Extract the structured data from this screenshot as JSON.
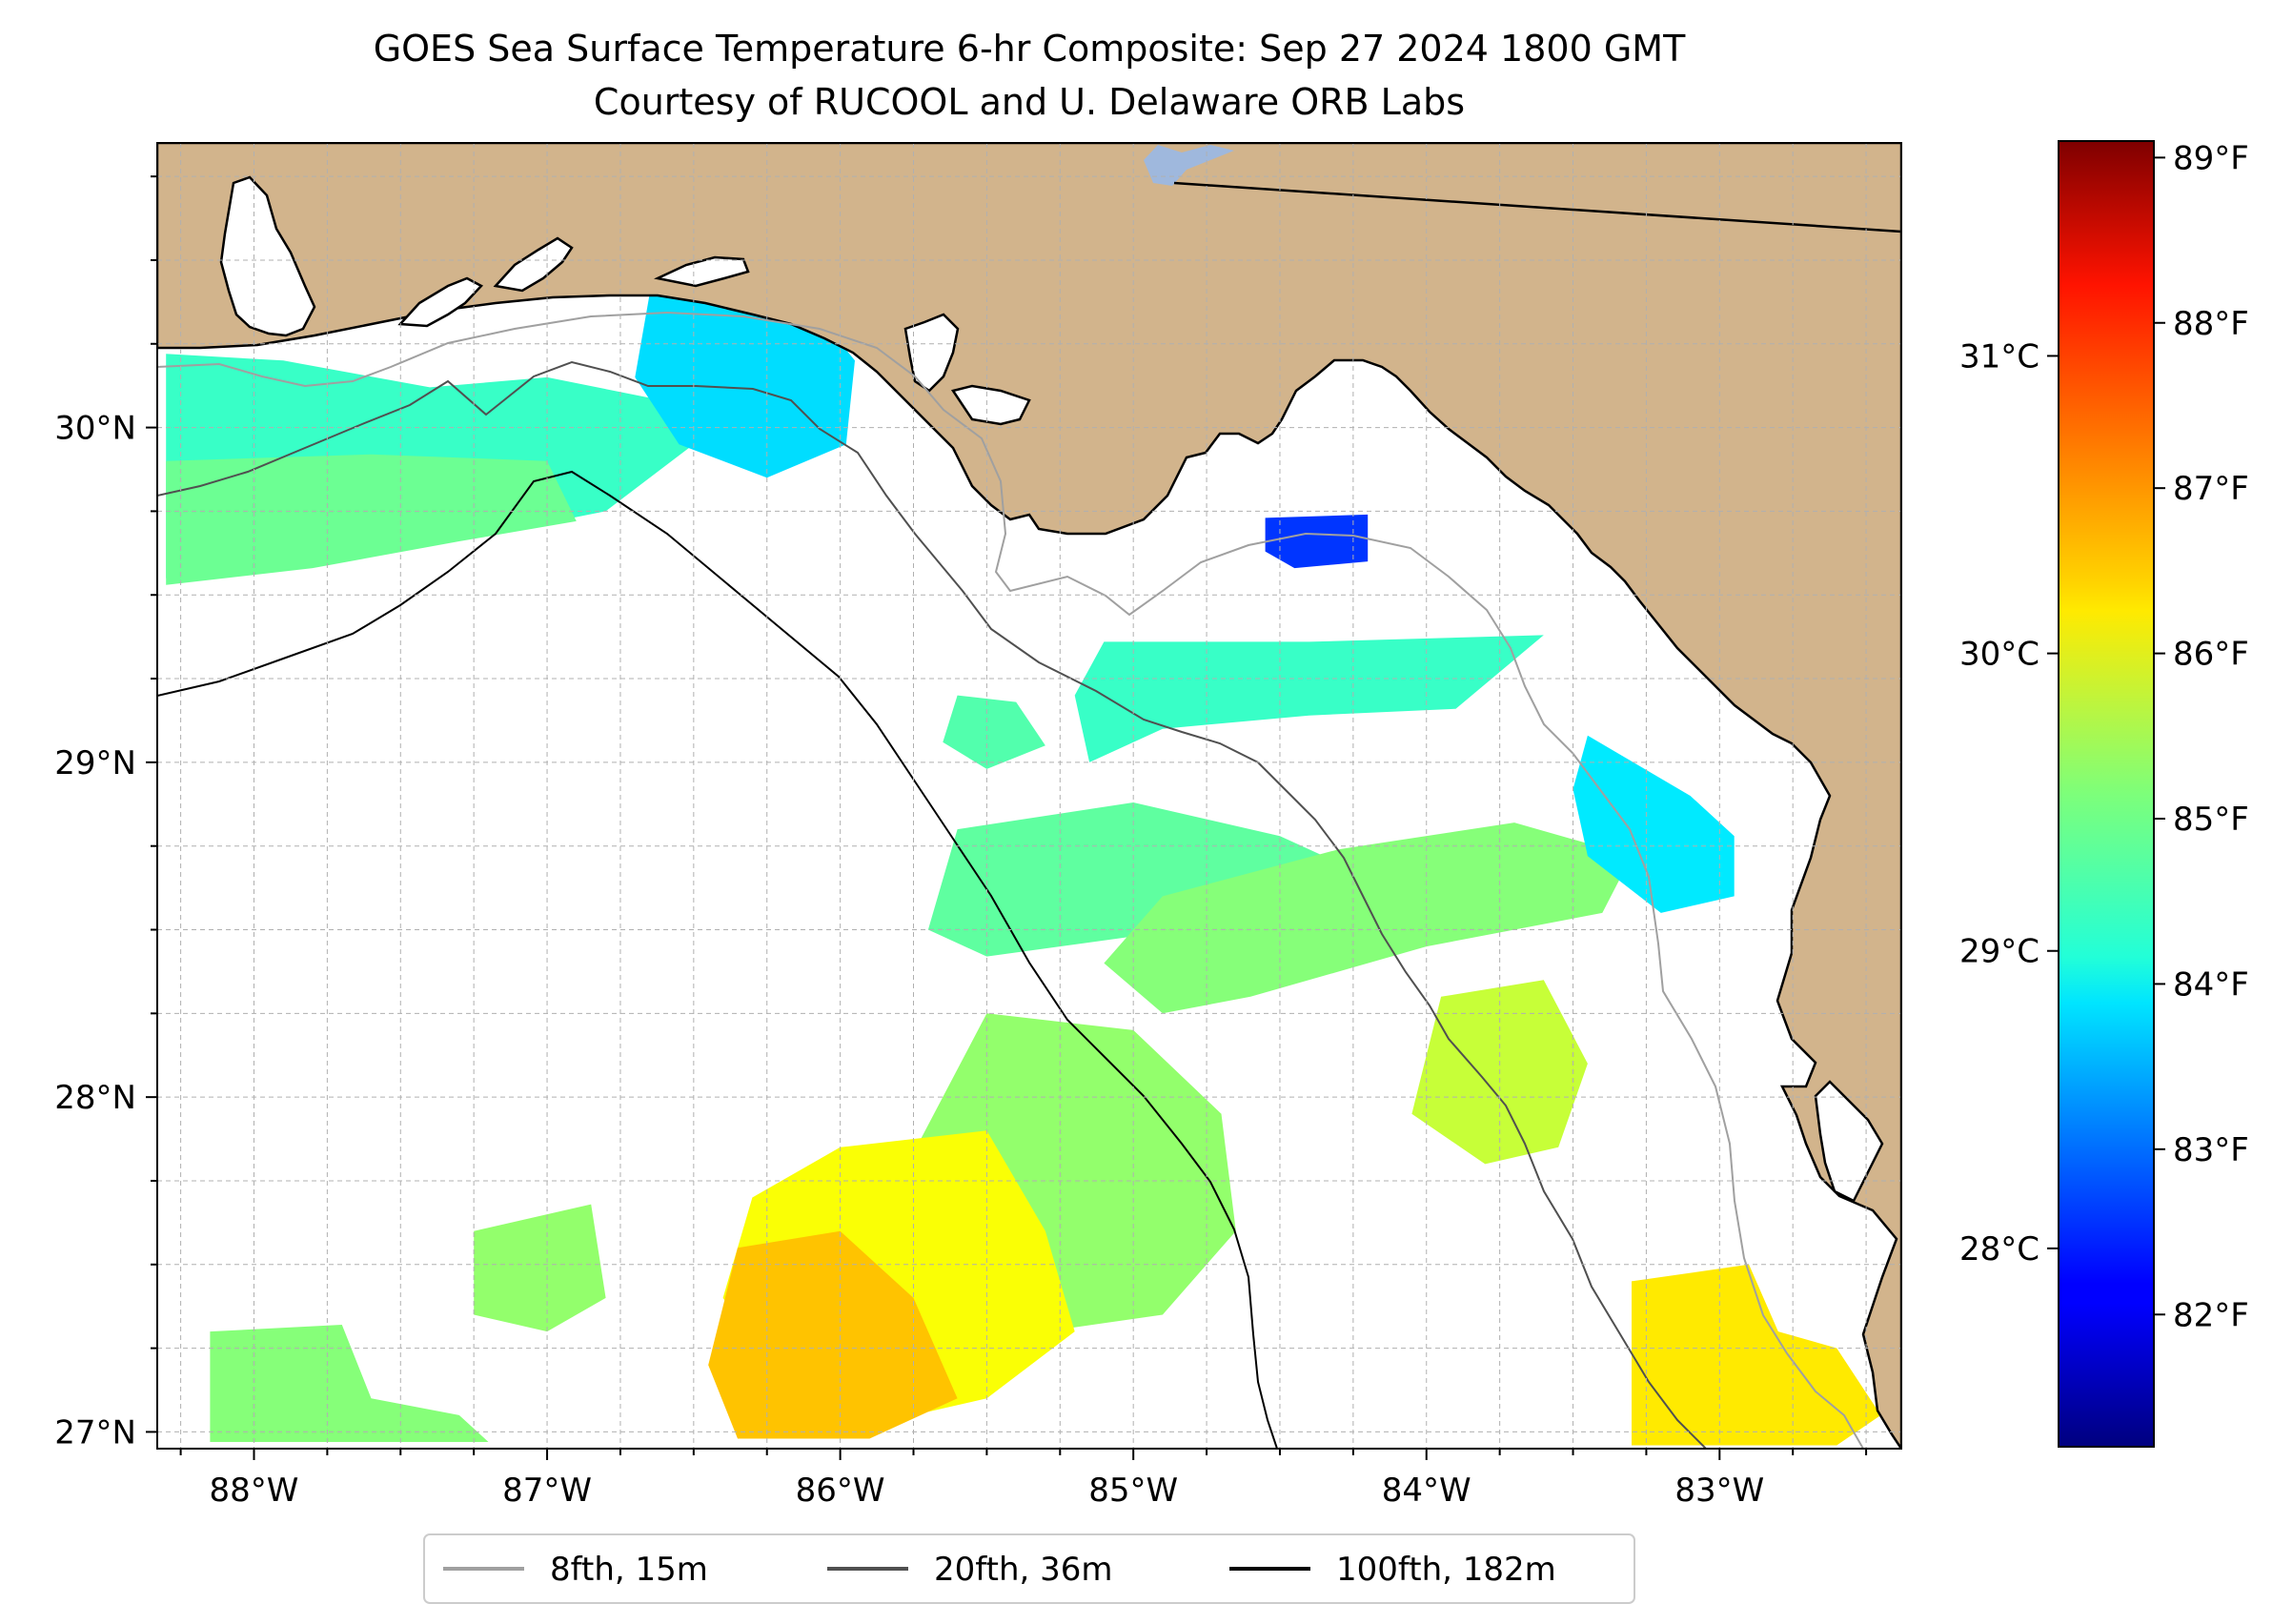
{
  "title": "GOES Sea Surface Temperature 6-hr Composite: Sep 27 2024 1800 GMT",
  "subtitle": "Courtesy of RUCOOL and U. Delaware ORB Labs",
  "map": {
    "lon_range": [
      -88.33,
      -82.38
    ],
    "lat_range": [
      26.95,
      30.85
    ],
    "lon_ticks": [
      {
        "value": -88,
        "label": "88°W"
      },
      {
        "value": -87,
        "label": "87°W"
      },
      {
        "value": -86,
        "label": "86°W"
      },
      {
        "value": -85,
        "label": "85°W"
      },
      {
        "value": -84,
        "label": "84°W"
      },
      {
        "value": -83,
        "label": "83°W"
      }
    ],
    "lat_ticks": [
      {
        "value": 27,
        "label": "27°N"
      },
      {
        "value": 28,
        "label": "28°N"
      },
      {
        "value": 29,
        "label": "29°N"
      },
      {
        "value": 30,
        "label": "30°N"
      }
    ],
    "gridlines": true,
    "colors": {
      "land": "#d2b48c",
      "ocean": "#ffffff",
      "coastline": "#000000",
      "grid": "#b0b0b0",
      "lake": "#9fb8dd"
    }
  },
  "colorbar": {
    "colormap": "jet",
    "f_range": [
      81.2,
      89.1
    ],
    "f_ticks": [
      {
        "value": 82,
        "label": "82°F"
      },
      {
        "value": 83,
        "label": "83°F"
      },
      {
        "value": 84,
        "label": "84°F"
      },
      {
        "value": 85,
        "label": "85°F"
      },
      {
        "value": 86,
        "label": "86°F"
      },
      {
        "value": 87,
        "label": "87°F"
      },
      {
        "value": 88,
        "label": "88°F"
      },
      {
        "value": 89,
        "label": "89°F"
      }
    ],
    "c_ticks": [
      {
        "value": 28,
        "label": "28°C"
      },
      {
        "value": 29,
        "label": "29°C"
      },
      {
        "value": 30,
        "label": "30°C"
      },
      {
        "value": 31,
        "label": "31°C"
      }
    ]
  },
  "legend": {
    "placement": "bottom-center",
    "entries": [
      {
        "label": "8fth, 15m",
        "color": "#a0a0a0"
      },
      {
        "label": "20fth, 36m",
        "color": "#505050"
      },
      {
        "label": "100fth, 182m",
        "color": "#000000"
      }
    ]
  },
  "sst_patches": [
    {
      "name": "panhandle-shelf",
      "temp_f": 84.6,
      "poly": [
        [
          -88.3,
          30.22
        ],
        [
          -87.9,
          30.2
        ],
        [
          -87.4,
          30.12
        ],
        [
          -87.0,
          30.15
        ],
        [
          -86.6,
          30.08
        ],
        [
          -86.5,
          29.95
        ],
        [
          -86.8,
          29.75
        ],
        [
          -87.2,
          29.68
        ],
        [
          -87.7,
          29.62
        ],
        [
          -88.3,
          29.55
        ]
      ]
    },
    {
      "name": "panhandle-shelf-west-warm",
      "temp_f": 85.0,
      "poly": [
        [
          -88.3,
          29.9
        ],
        [
          -87.6,
          29.92
        ],
        [
          -87.0,
          29.9
        ],
        [
          -86.9,
          29.72
        ],
        [
          -87.3,
          29.66
        ],
        [
          -87.8,
          29.58
        ],
        [
          -88.3,
          29.53
        ]
      ]
    },
    {
      "name": "destin-cool-patch",
      "temp_f": 83.9,
      "poly": [
        [
          -86.65,
          30.4
        ],
        [
          -86.1,
          30.36
        ],
        [
          -85.95,
          30.2
        ],
        [
          -85.98,
          29.95
        ],
        [
          -86.25,
          29.85
        ],
        [
          -86.55,
          29.95
        ],
        [
          -86.7,
          30.15
        ]
      ]
    },
    {
      "name": "apalachee-cool-patch",
      "temp_f": 82.6,
      "poly": [
        [
          -84.55,
          29.73
        ],
        [
          -84.2,
          29.74
        ],
        [
          -84.2,
          29.6
        ],
        [
          -84.45,
          29.58
        ],
        [
          -84.55,
          29.63
        ]
      ]
    },
    {
      "name": "mid-shelf-band",
      "temp_f": 84.6,
      "poly": [
        [
          -85.1,
          29.36
        ],
        [
          -84.4,
          29.36
        ],
        [
          -83.6,
          29.38
        ],
        [
          -83.9,
          29.16
        ],
        [
          -84.4,
          29.14
        ],
        [
          -84.9,
          29.1
        ],
        [
          -85.15,
          29.0
        ],
        [
          -85.2,
          29.2
        ]
      ]
    },
    {
      "name": "big-bend-west-patch",
      "temp_f": 84.8,
      "poly": [
        [
          -85.6,
          29.2
        ],
        [
          -85.4,
          29.18
        ],
        [
          -85.3,
          29.05
        ],
        [
          -85.5,
          28.98
        ],
        [
          -85.65,
          29.06
        ]
      ]
    },
    {
      "name": "central-band",
      "temp_f": 84.9,
      "poly": [
        [
          -85.6,
          28.8
        ],
        [
          -85.0,
          28.88
        ],
        [
          -84.5,
          28.78
        ],
        [
          -84.3,
          28.7
        ],
        [
          -84.5,
          28.52
        ],
        [
          -85.0,
          28.48
        ],
        [
          -85.5,
          28.42
        ],
        [
          -85.7,
          28.5
        ]
      ]
    },
    {
      "name": "central-band-east",
      "temp_f": 85.2,
      "poly": [
        [
          -84.9,
          28.6
        ],
        [
          -84.3,
          28.74
        ],
        [
          -83.7,
          28.82
        ],
        [
          -83.3,
          28.72
        ],
        [
          -83.4,
          28.55
        ],
        [
          -84.0,
          28.45
        ],
        [
          -84.6,
          28.3
        ],
        [
          -84.9,
          28.25
        ],
        [
          -85.1,
          28.4
        ]
      ]
    },
    {
      "name": "tampa-shelf-cool",
      "temp_f": 84.0,
      "poly": [
        [
          -83.45,
          29.08
        ],
        [
          -83.1,
          28.9
        ],
        [
          -82.95,
          28.78
        ],
        [
          -82.95,
          28.6
        ],
        [
          -83.2,
          28.55
        ],
        [
          -83.45,
          28.72
        ],
        [
          -83.5,
          28.92
        ]
      ]
    },
    {
      "name": "mid-south-warm",
      "temp_f": 85.7,
      "poly": [
        [
          -83.95,
          28.3
        ],
        [
          -83.6,
          28.35
        ],
        [
          -83.45,
          28.1
        ],
        [
          -83.55,
          27.85
        ],
        [
          -83.8,
          27.8
        ],
        [
          -84.05,
          27.95
        ]
      ]
    },
    {
      "name": "southern-green-field",
      "temp_f": 85.3,
      "poly": [
        [
          -85.5,
          28.25
        ],
        [
          -85.0,
          28.2
        ],
        [
          -84.7,
          27.95
        ],
        [
          -84.65,
          27.6
        ],
        [
          -84.9,
          27.35
        ],
        [
          -85.3,
          27.3
        ],
        [
          -85.6,
          27.45
        ],
        [
          -85.8,
          27.75
        ]
      ]
    },
    {
      "name": "southern-yellow-field",
      "temp_f": 86.1,
      "poly": [
        [
          -86.0,
          27.85
        ],
        [
          -85.5,
          27.9
        ],
        [
          -85.3,
          27.6
        ],
        [
          -85.2,
          27.3
        ],
        [
          -85.5,
          27.1
        ],
        [
          -85.9,
          27.02
        ],
        [
          -86.2,
          27.15
        ],
        [
          -86.4,
          27.4
        ],
        [
          -86.3,
          27.7
        ]
      ]
    },
    {
      "name": "southern-warm-core",
      "temp_f": 86.6,
      "poly": [
        [
          -86.35,
          27.55
        ],
        [
          -86.0,
          27.6
        ],
        [
          -85.75,
          27.4
        ],
        [
          -85.6,
          27.1
        ],
        [
          -85.9,
          26.98
        ],
        [
          -86.35,
          26.98
        ],
        [
          -86.45,
          27.2
        ]
      ]
    },
    {
      "name": "southwest-green-patch",
      "temp_f": 85.3,
      "poly": [
        [
          -87.25,
          27.6
        ],
        [
          -86.85,
          27.68
        ],
        [
          -86.8,
          27.4
        ],
        [
          -87.0,
          27.3
        ],
        [
          -87.25,
          27.35
        ]
      ]
    },
    {
      "name": "southwest-strip",
      "temp_f": 85.2,
      "poly": [
        [
          -88.15,
          27.3
        ],
        [
          -87.7,
          27.32
        ],
        [
          -87.6,
          27.1
        ],
        [
          -87.3,
          27.05
        ],
        [
          -87.2,
          26.97
        ],
        [
          -88.15,
          26.97
        ]
      ]
    },
    {
      "name": "southeast-warm",
      "temp_f": 86.3,
      "poly": [
        [
          -83.3,
          27.45
        ],
        [
          -82.9,
          27.5
        ],
        [
          -82.8,
          27.3
        ],
        [
          -82.6,
          27.25
        ],
        [
          -82.45,
          27.05
        ],
        [
          -82.6,
          26.96
        ],
        [
          -83.3,
          26.96
        ]
      ]
    }
  ]
}
